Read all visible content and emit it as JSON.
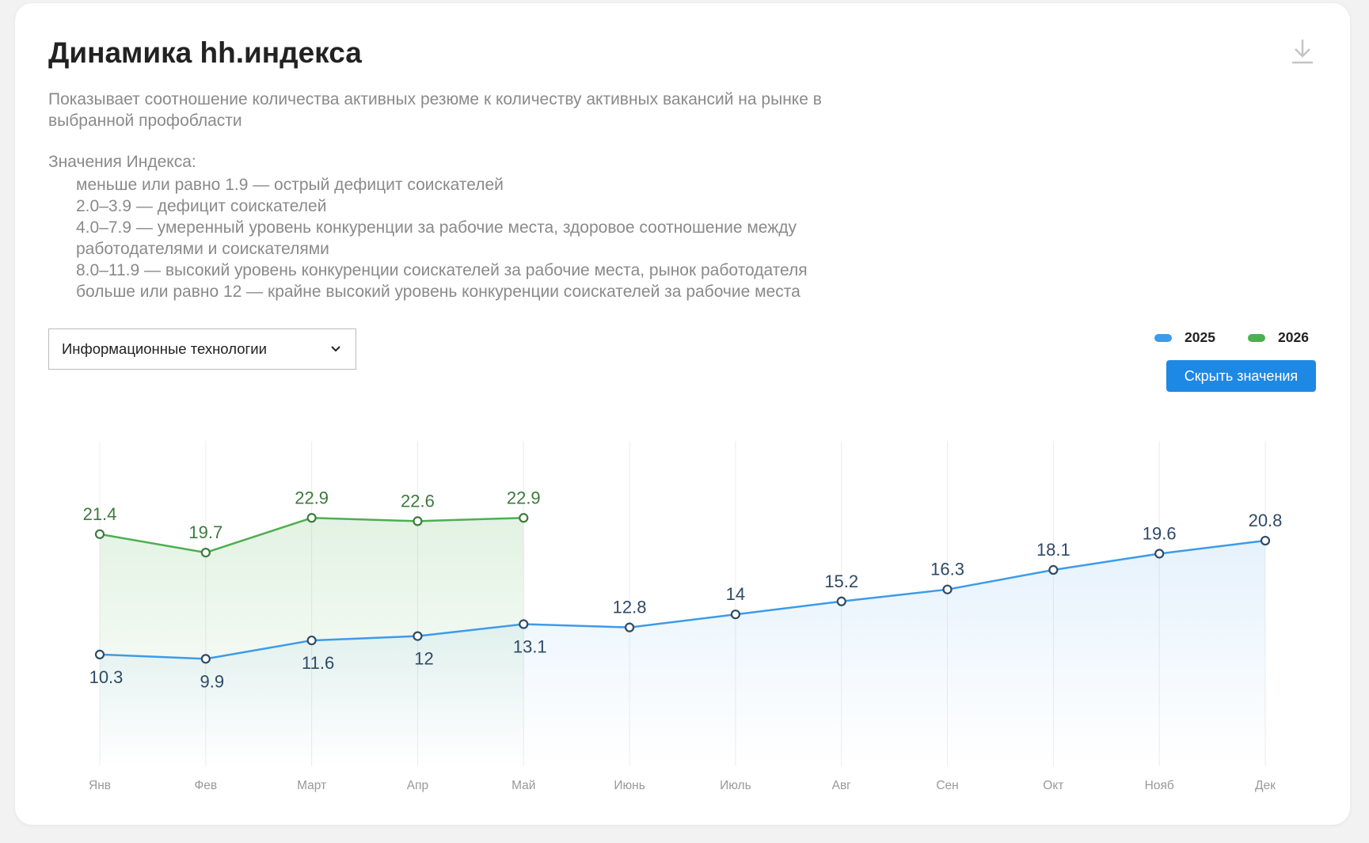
{
  "chart_data": {
    "type": "line",
    "title": "Динамика hh.индекса",
    "subtitle": "Показывает соотношение количества активных резюме к количеству активных вакансий на рынке в выбранной профобласти",
    "index_heading": "Значения Индекса:",
    "index_levels": [
      "меньше или равно 1.9 — острый дефицит соискателей",
      "2.0–3.9 — дефицит соискателей",
      "4.0–7.9 — умеренный уровень конкуренции за рабочие места, здоровое соотношение между работодателями и соискателями",
      "8.0–11.9 — высокий уровень конкуренции соискателей за рабочие места, рынок работодателя",
      "больше или равно 12 — крайне высокий уровень конкуренции соискателей за рабочие места"
    ],
    "filter": "Информационные технологии",
    "button": "Скрыть значения",
    "categories": [
      "Янв",
      "Фев",
      "Март",
      "Апр",
      "Май",
      "Июнь",
      "Июль",
      "Авг",
      "Сен",
      "Окт",
      "Нояб",
      "Дек"
    ],
    "series": [
      {
        "name": "2025",
        "color": "#3d9be9",
        "values": [
          10.3,
          9.9,
          11.6,
          12,
          13.1,
          12.8,
          14,
          15.2,
          16.3,
          18.1,
          19.6,
          20.8
        ]
      },
      {
        "name": "2026",
        "color": "#4caf50",
        "values": [
          21.4,
          19.7,
          22.9,
          22.6,
          22.9,
          null,
          null,
          null,
          null,
          null,
          null,
          null
        ]
      }
    ],
    "ylim": [
      0,
      30
    ],
    "grid": true
  }
}
